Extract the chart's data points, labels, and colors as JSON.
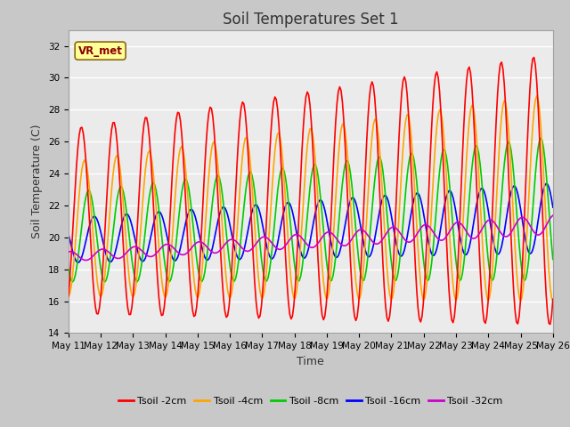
{
  "title": "Soil Temperatures Set 1",
  "xlabel": "Time",
  "ylabel": "Soil Temperature (C)",
  "ylim": [
    14,
    33
  ],
  "yticks": [
    14,
    16,
    18,
    20,
    22,
    24,
    26,
    28,
    30,
    32
  ],
  "x_tick_labels": [
    "May 11",
    "May 12",
    "May 13",
    "May 14",
    "May 15",
    "May 16",
    "May 17",
    "May 18",
    "May 19",
    "May 20",
    "May 21",
    "May 22",
    "May 23",
    "May 24",
    "May 25",
    "May 26"
  ],
  "annotation_text": "VR_met",
  "annotation_color": "#8B0000",
  "annotation_bg": "#FFFF99",
  "annotation_edge": "#8B6914",
  "lines": {
    "Tsoil -2cm": {
      "color": "#FF0000",
      "lw": 1.2
    },
    "Tsoil -4cm": {
      "color": "#FFA500",
      "lw": 1.2
    },
    "Tsoil -8cm": {
      "color": "#00CC00",
      "lw": 1.2
    },
    "Tsoil -16cm": {
      "color": "#0000FF",
      "lw": 1.2
    },
    "Tsoil -32cm": {
      "color": "#CC00CC",
      "lw": 1.2
    }
  },
  "fig_facecolor": "#C8C8C8",
  "plot_bg": "#EBEBEB",
  "grid_color": "#FFFFFF",
  "title_fontsize": 12,
  "axis_label_fontsize": 9,
  "tick_fontsize": 7.5
}
